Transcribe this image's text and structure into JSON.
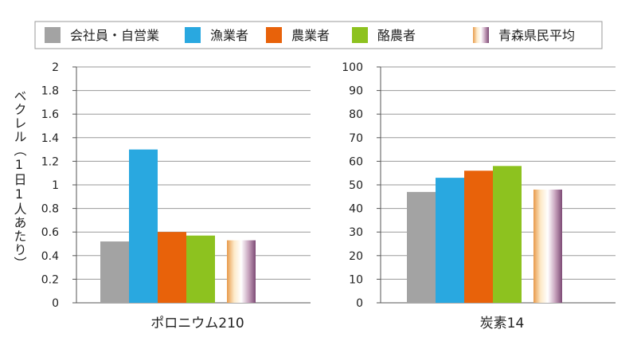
{
  "legend": {
    "items": [
      {
        "label": "会社員・自営業",
        "color": "#a3a3a3"
      },
      {
        "label": "漁業者",
        "color": "#29a8e0"
      },
      {
        "label": "農業者",
        "color": "#e8620a"
      },
      {
        "label": "酪農者",
        "color": "#8dc21f"
      },
      {
        "label": "青森県民平均",
        "color": "gradient"
      }
    ]
  },
  "y_axis_label": "ベクレル（1日1人あたり）",
  "gradient_colors": [
    "#e89a4a",
    "#fde9c8",
    "#ffffff",
    "#c9a6bf",
    "#7d4a75"
  ],
  "chart_data": [
    {
      "type": "bar",
      "xlabel": "ポロニウム210",
      "ylim": [
        0,
        2
      ],
      "yticks": [
        "0",
        "0.2",
        "0.4",
        "0.6",
        "0.8",
        "1",
        "1.2",
        "1.4",
        "1.6",
        "1.8",
        "2"
      ],
      "grid": true,
      "series": [
        {
          "name": "会社員・自営業",
          "value": 0.52
        },
        {
          "name": "漁業者",
          "value": 1.3
        },
        {
          "name": "農業者",
          "value": 0.6
        },
        {
          "name": "酪農者",
          "value": 0.57
        },
        {
          "name": "青森県民平均",
          "value": 0.53
        }
      ]
    },
    {
      "type": "bar",
      "xlabel": "炭素14",
      "ylim": [
        0,
        100
      ],
      "yticks": [
        "0",
        "10",
        "20",
        "30",
        "40",
        "50",
        "60",
        "70",
        "80",
        "90",
        "100"
      ],
      "grid": true,
      "series": [
        {
          "name": "会社員・自営業",
          "value": 47
        },
        {
          "name": "漁業者",
          "value": 53
        },
        {
          "name": "農業者",
          "value": 56
        },
        {
          "name": "酪農者",
          "value": 58
        },
        {
          "name": "青森県民平均",
          "value": 48
        }
      ]
    }
  ]
}
